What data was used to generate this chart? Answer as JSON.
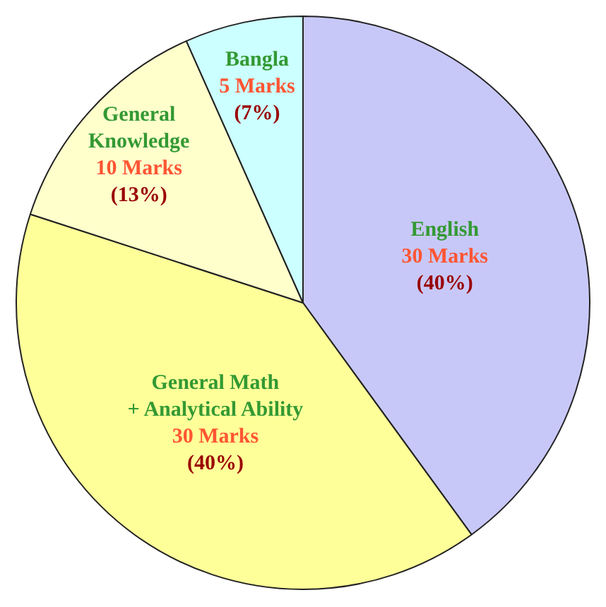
{
  "chart_data": {
    "type": "pie",
    "categories": [
      "English",
      "General Math\n+ Analytical Ability",
      "General\nKnowledge",
      "Bangla"
    ],
    "values": [
      30,
      30,
      10,
      5
    ],
    "colors": [
      "#c8c8f8",
      "#ffff99",
      "#ffffcc",
      "#ccffff"
    ],
    "value_labels": [
      "30 Marks\n(40%)",
      "30 Marks\n(40%)",
      "10 Marks\n(13%)",
      "5 Marks\n(7%)"
    ],
    "legend": false
  }
}
